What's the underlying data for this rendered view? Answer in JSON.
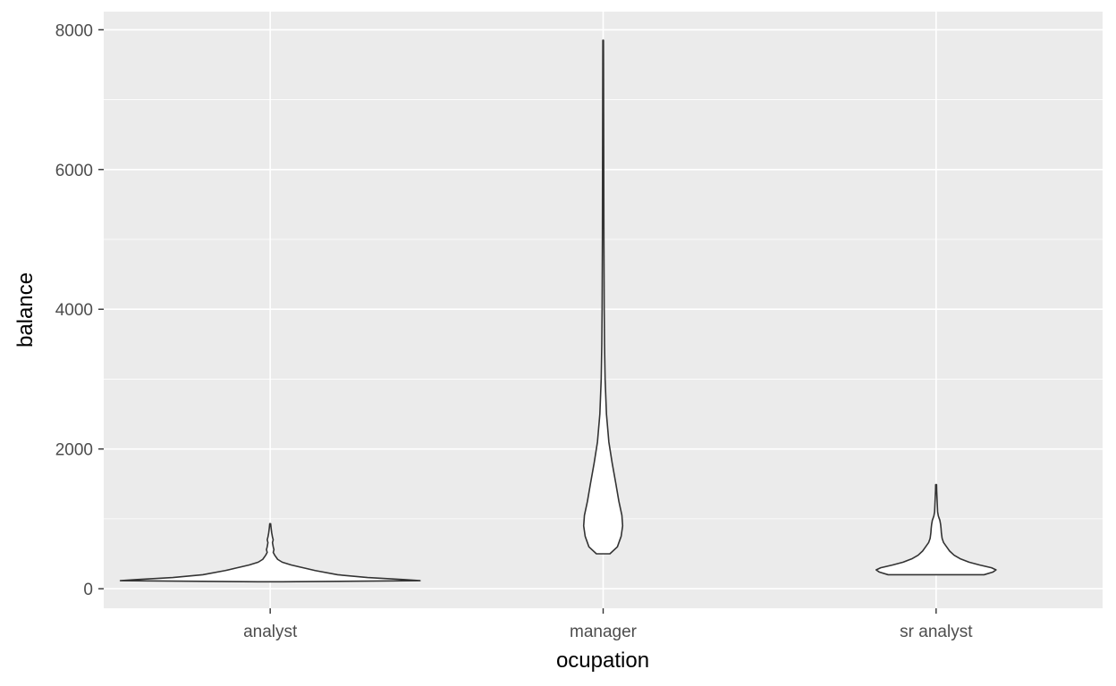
{
  "chart_data": {
    "type": "violin",
    "xlabel": "ocupation",
    "ylabel": "balance",
    "ylim": [
      -280,
      8260
    ],
    "y_ticks": [
      0,
      2000,
      4000,
      6000,
      8000
    ],
    "y_tick_labels": [
      "0",
      "2000",
      "4000",
      "6000",
      "8000"
    ],
    "categories": [
      "analyst",
      "manager",
      "sr analyst"
    ],
    "grid": true,
    "legend": "none",
    "colors": {
      "panel": "#ebebeb",
      "grid": "#ffffff",
      "violin_fill": "#ffffff",
      "violin_outline": "#333333",
      "tick_text": "#4d4d4d",
      "axis_text": "#000000"
    },
    "violins": [
      {
        "category": "analyst",
        "min": 100,
        "max": 930,
        "profile": [
          [
            100,
            0.08
          ],
          [
            115,
            1.0
          ],
          [
            130,
            0.9
          ],
          [
            160,
            0.65
          ],
          [
            200,
            0.45
          ],
          [
            260,
            0.3
          ],
          [
            300,
            0.22
          ],
          [
            340,
            0.14
          ],
          [
            380,
            0.08
          ],
          [
            420,
            0.05
          ],
          [
            480,
            0.03
          ],
          [
            520,
            0.02
          ],
          [
            560,
            0.025
          ],
          [
            600,
            0.02
          ],
          [
            660,
            0.015
          ],
          [
            700,
            0.02
          ],
          [
            740,
            0.015
          ],
          [
            800,
            0.01
          ],
          [
            870,
            0.006
          ],
          [
            930,
            0.003
          ]
        ]
      },
      {
        "category": "manager",
        "min": 500,
        "max": 7850,
        "profile": [
          [
            500,
            0.045
          ],
          [
            600,
            0.095
          ],
          [
            750,
            0.12
          ],
          [
            900,
            0.13
          ],
          [
            1050,
            0.125
          ],
          [
            1250,
            0.105
          ],
          [
            1500,
            0.085
          ],
          [
            1800,
            0.06
          ],
          [
            2100,
            0.038
          ],
          [
            2500,
            0.022
          ],
          [
            3000,
            0.013
          ],
          [
            3500,
            0.009
          ],
          [
            4000,
            0.007
          ],
          [
            4500,
            0.006
          ],
          [
            5000,
            0.005
          ],
          [
            5500,
            0.0045
          ],
          [
            6000,
            0.004
          ],
          [
            6500,
            0.0035
          ],
          [
            7000,
            0.003
          ],
          [
            7500,
            0.0025
          ],
          [
            7850,
            0.002
          ]
        ]
      },
      {
        "category": "sr analyst",
        "min": 200,
        "max": 1490,
        "profile": [
          [
            200,
            0.32
          ],
          [
            240,
            0.38
          ],
          [
            270,
            0.4
          ],
          [
            300,
            0.37
          ],
          [
            340,
            0.29
          ],
          [
            380,
            0.22
          ],
          [
            430,
            0.16
          ],
          [
            480,
            0.12
          ],
          [
            540,
            0.09
          ],
          [
            600,
            0.07
          ],
          [
            660,
            0.05
          ],
          [
            720,
            0.04
          ],
          [
            800,
            0.035
          ],
          [
            860,
            0.033
          ],
          [
            920,
            0.03
          ],
          [
            980,
            0.025
          ],
          [
            1040,
            0.015
          ],
          [
            1100,
            0.01
          ],
          [
            1200,
            0.008
          ],
          [
            1300,
            0.006
          ],
          [
            1400,
            0.004
          ],
          [
            1490,
            0.003
          ]
        ]
      }
    ]
  }
}
